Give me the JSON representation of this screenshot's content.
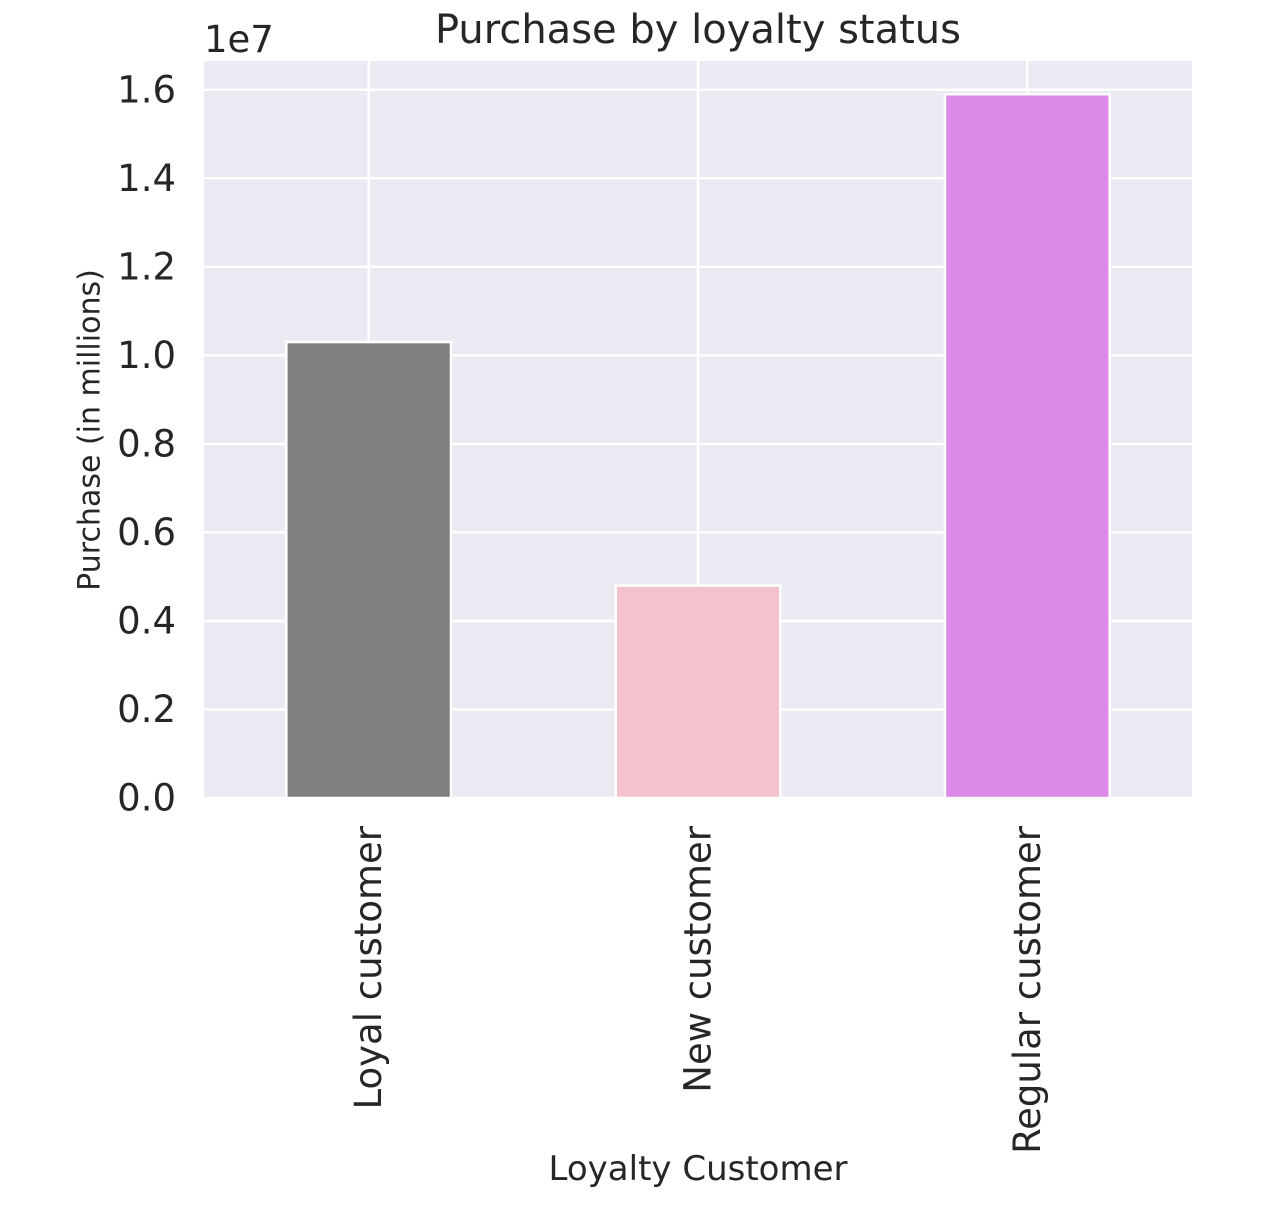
{
  "chart_data": {
    "type": "bar",
    "title": "Purchase by loyalty status",
    "xlabel": "Loyalty Customer",
    "ylabel": "Purchase (in millions)",
    "offset_label": "1e7",
    "categories": [
      "Loyal customer",
      "New customer",
      "Regular customer"
    ],
    "values": [
      10300000,
      4800000,
      15900000
    ],
    "colors": [
      "#808080",
      "#f4c2cc",
      "#dc89e8"
    ],
    "yticks": [
      "0.0",
      "0.2",
      "0.4",
      "0.6",
      "0.8",
      "1.0",
      "1.2",
      "1.4",
      "1.6"
    ],
    "ytick_values": [
      0,
      2000000,
      4000000,
      6000000,
      8000000,
      10000000,
      12000000,
      14000000,
      16000000
    ],
    "ylim": [
      0,
      16650000
    ],
    "grid": true,
    "background": "#eaeaf2"
  }
}
